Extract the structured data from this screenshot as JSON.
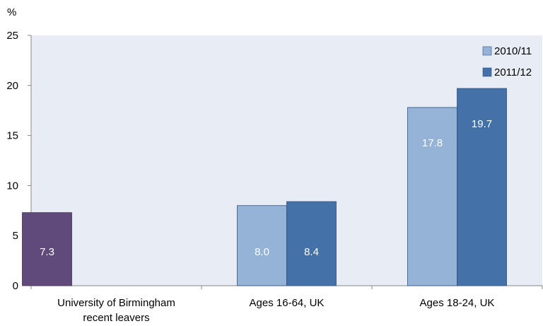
{
  "chart_data": {
    "type": "bar",
    "ylabel": "%",
    "ylim": [
      0,
      25
    ],
    "yticks": [
      "0",
      "5",
      "10",
      "15",
      "20",
      "25"
    ],
    "categories": [
      [
        "University of Birmingham",
        "recent leavers"
      ],
      [
        "Ages 16-64, UK"
      ],
      [
        "Ages 18-24, UK"
      ]
    ],
    "series": [
      {
        "name": "2010/11",
        "values": [
          null,
          8.0,
          17.8
        ],
        "labels": [
          null,
          "8.0",
          "17.8"
        ],
        "color": "#95B3D7"
      },
      {
        "name": "2011/12",
        "values": [
          null,
          8.4,
          19.7
        ],
        "labels": [
          null,
          "8.4",
          "19.7"
        ],
        "color": "#4472A8"
      }
    ],
    "highlight": {
      "category_index": 0,
      "value": 7.3,
      "label": "7.3",
      "color": "#604A7B"
    },
    "legend_position": "top-right",
    "plot_background": "#E8ECF5",
    "grid": false
  }
}
